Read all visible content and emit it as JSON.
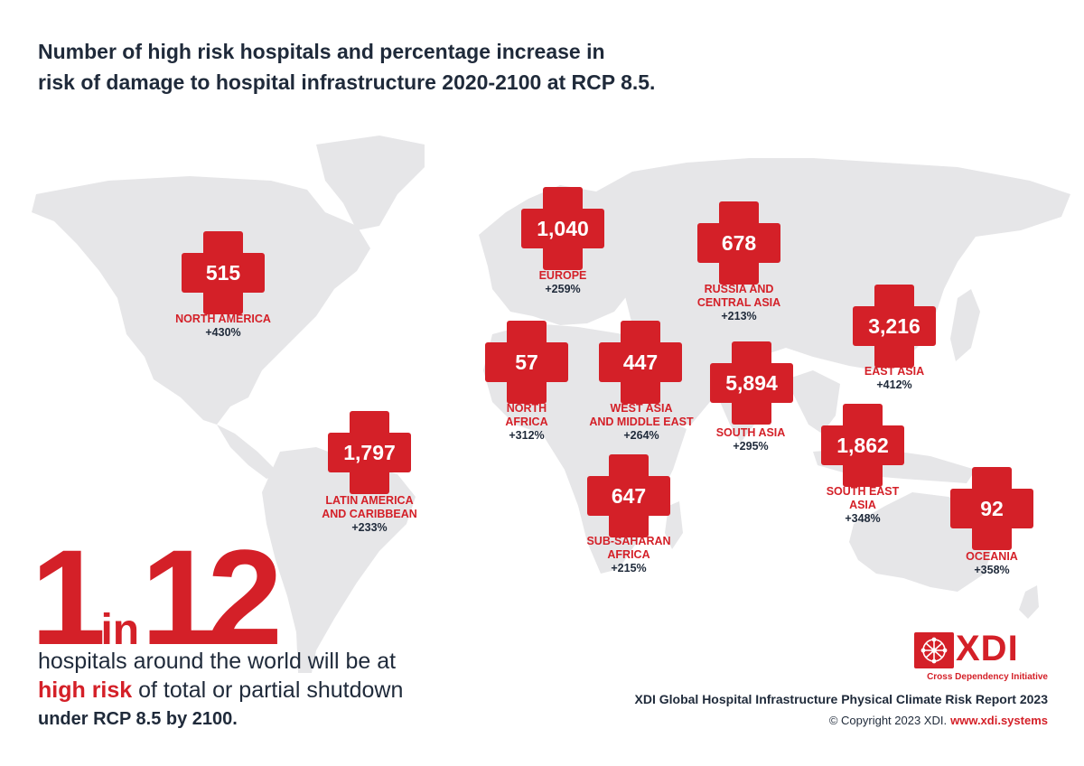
{
  "title": {
    "line1": "Number of high risk hospitals and percentage increase in",
    "line2": "risk of damage to hospital infrastructure 2020-2100 at RCP 8.5."
  },
  "colors": {
    "accent": "#d42028",
    "text": "#1f2a3a",
    "land": "#e6e6e8"
  },
  "regions": {
    "north_america": {
      "count": "515",
      "name1": "NORTH AMERICA",
      "name2": "",
      "pct": "+430%"
    },
    "europe": {
      "count": "1,040",
      "name1": "EUROPE",
      "name2": "",
      "pct": "+259%"
    },
    "russia_central_asia": {
      "count": "678",
      "name1": "RUSSIA AND",
      "name2": "CENTRAL ASIA",
      "pct": "+213%"
    },
    "east_asia": {
      "count": "3,216",
      "name1": "EAST ASIA",
      "name2": "",
      "pct": "+412%"
    },
    "north_africa": {
      "count": "57",
      "name1": "NORTH",
      "name2": "AFRICA",
      "pct": "+312%"
    },
    "west_asia_middle_east": {
      "count": "447",
      "name1": "WEST ASIA",
      "name2": "AND MIDDLE EAST",
      "pct": "+264%"
    },
    "south_asia": {
      "count": "5,894",
      "name1": "SOUTH ASIA",
      "name2": "",
      "pct": "+295%"
    },
    "south_east_asia": {
      "count": "1,862",
      "name1": "SOUTH EAST",
      "name2": "ASIA",
      "pct": "+348%"
    },
    "latin_america_caribbean": {
      "count": "1,797",
      "name1": "LATIN AMERICA",
      "name2": "AND CARIBBEAN",
      "pct": "+233%"
    },
    "sub_saharan_africa": {
      "count": "647",
      "name1": "SUB-SAHARAN",
      "name2": "AFRICA",
      "pct": "+215%"
    },
    "oceania": {
      "count": "92",
      "name1": "OCEANIA",
      "name2": "",
      "pct": "+358%"
    }
  },
  "stat": {
    "one": "1",
    "in": "in",
    "twelve": "12",
    "line1": "hospitals around the world will be at",
    "line2_highlight": "high risk",
    "line2_rest": " of total or partial shutdown",
    "line3": "under RCP 8.5 by 2100."
  },
  "brand": {
    "logo_text": "XDI",
    "logo_sub": "Cross Dependency Initiative",
    "report": "XDI Global Hospital Infrastructure Physical Climate Risk Report 2023",
    "copyright": "© Copyright 2023 XDI.",
    "url": "www.xdi.systems"
  }
}
